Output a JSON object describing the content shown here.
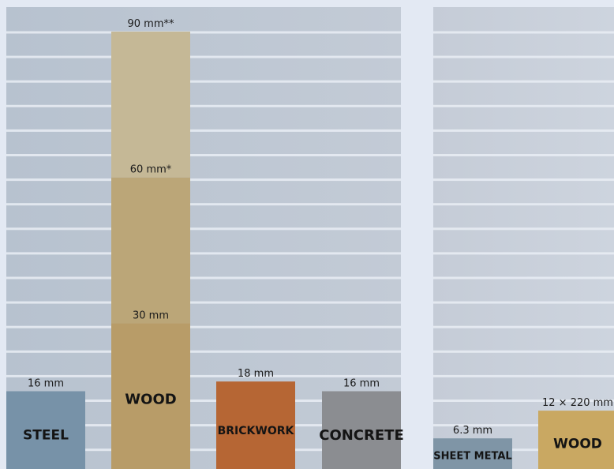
{
  "chart_data": [
    {
      "type": "bar",
      "categories": [
        "STEEL",
        "WOOD",
        "BRICKWORK",
        "CONCRETE"
      ],
      "unit": "mm",
      "ylim": [
        0,
        90
      ],
      "grid": true,
      "bars": [
        {
          "category": "STEEL",
          "segments": [
            {
              "value": 16,
              "label": "16 mm",
              "color": "#7792a8"
            }
          ],
          "label_color": "#111111"
        },
        {
          "category": "WOOD",
          "segments": [
            {
              "value": 30,
              "label": "30 mm",
              "color": "#b89c68"
            },
            {
              "value": 60,
              "label": "60 mm*",
              "color": "#bba678"
            },
            {
              "value": 90,
              "label": "90 mm**",
              "color": "#c5b896"
            }
          ],
          "label_color": "#111111"
        },
        {
          "category": "BRICKWORK",
          "segments": [
            {
              "value": 18,
              "label": "18 mm",
              "color": "#b66634"
            }
          ],
          "label_color": "#111111"
        },
        {
          "category": "CONCRETE",
          "segments": [
            {
              "value": 16,
              "label": "16 mm",
              "color": "#8b8d91"
            }
          ],
          "label_color": "#111111"
        }
      ]
    },
    {
      "type": "bar",
      "categories": [
        "SHEET METAL",
        "WOOD"
      ],
      "unit": "mm",
      "ylim": [
        0,
        90
      ],
      "grid": true,
      "bars": [
        {
          "category": "SHEET METAL",
          "segments": [
            {
              "value": 6.3,
              "label": "6.3 mm",
              "color": "#7f95a6"
            }
          ],
          "label_color": "#111111"
        },
        {
          "category": "WOOD",
          "segments": [
            {
              "value": 12,
              "label": "12 × 220 mm",
              "color": "#c9a862"
            }
          ],
          "label_color": "#111111"
        }
      ]
    }
  ],
  "colors": {
    "background": "#e3e9f3",
    "panel_left": "#b2bdca",
    "panel_right": "#c9d0db",
    "grid_line": "#e9edf4"
  }
}
